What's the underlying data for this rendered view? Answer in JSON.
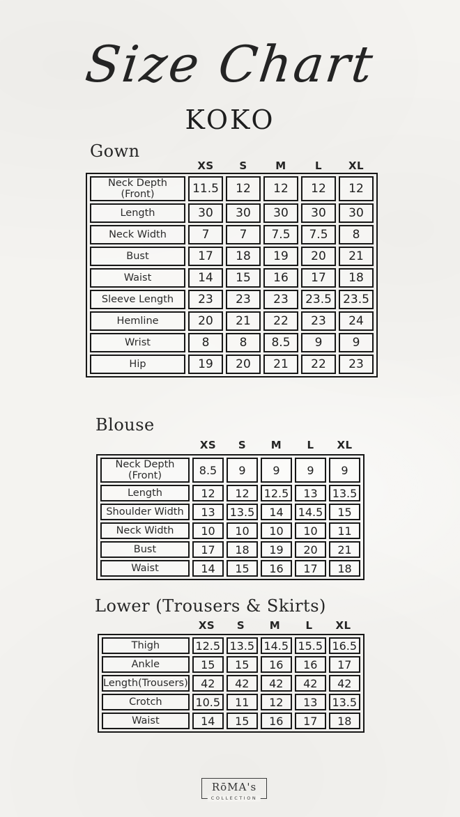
{
  "header": {
    "script_title": "Size Chart",
    "brand": "KOKO"
  },
  "sizes": [
    "XS",
    "S",
    "M",
    "L",
    "XL"
  ],
  "sections": [
    {
      "heading": "Gown",
      "rows": [
        {
          "label": "Neck Depth (Front)",
          "values": [
            "11.5",
            "12",
            "12",
            "12",
            "12"
          ]
        },
        {
          "label": "Length",
          "values": [
            "30",
            "30",
            "30",
            "30",
            "30"
          ]
        },
        {
          "label": "Neck Width",
          "values": [
            "7",
            "7",
            "7.5",
            "7.5",
            "8"
          ]
        },
        {
          "label": "Bust",
          "values": [
            "17",
            "18",
            "19",
            "20",
            "21"
          ]
        },
        {
          "label": "Waist",
          "values": [
            "14",
            "15",
            "16",
            "17",
            "18"
          ]
        },
        {
          "label": "Sleeve Length",
          "values": [
            "23",
            "23",
            "23",
            "23.5",
            "23.5"
          ]
        },
        {
          "label": "Hemline",
          "values": [
            "20",
            "21",
            "22",
            "23",
            "24"
          ]
        },
        {
          "label": "Wrist",
          "values": [
            "8",
            "8",
            "8.5",
            "9",
            "9"
          ]
        },
        {
          "label": "Hip",
          "values": [
            "19",
            "20",
            "21",
            "22",
            "23"
          ]
        }
      ]
    },
    {
      "heading": "Blouse",
      "rows": [
        {
          "label": "Neck Depth (Front)",
          "values": [
            "8.5",
            "9",
            "9",
            "9",
            "9"
          ]
        },
        {
          "label": "Length",
          "values": [
            "12",
            "12",
            "12.5",
            "13",
            "13.5"
          ]
        },
        {
          "label": "Shoulder Width",
          "values": [
            "13",
            "13.5",
            "14",
            "14.5",
            "15"
          ]
        },
        {
          "label": "Neck Width",
          "values": [
            "10",
            "10",
            "10",
            "10",
            "11"
          ]
        },
        {
          "label": "Bust",
          "values": [
            "17",
            "18",
            "19",
            "20",
            "21"
          ]
        },
        {
          "label": "Waist",
          "values": [
            "14",
            "15",
            "16",
            "17",
            "18"
          ]
        }
      ]
    },
    {
      "heading": "Lower (Trousers & Skirts)",
      "rows": [
        {
          "label": "Thigh",
          "values": [
            "12.5",
            "13.5",
            "14.5",
            "15.5",
            "16.5"
          ]
        },
        {
          "label": "Ankle",
          "values": [
            "15",
            "15",
            "16",
            "16",
            "17"
          ]
        },
        {
          "label": "Length(Trousers)",
          "values": [
            "42",
            "42",
            "42",
            "42",
            "42"
          ]
        },
        {
          "label": "Crotch",
          "values": [
            "10.5",
            "11",
            "12",
            "13",
            "13.5"
          ]
        },
        {
          "label": "Waist",
          "values": [
            "14",
            "15",
            "16",
            "17",
            "18"
          ]
        }
      ]
    }
  ],
  "footer": {
    "brand": "RōMA's",
    "tagline": "COLLECTION"
  },
  "colors": {
    "paper": "#f4f3f0",
    "ink": "#222222",
    "table_border": "#171717"
  }
}
